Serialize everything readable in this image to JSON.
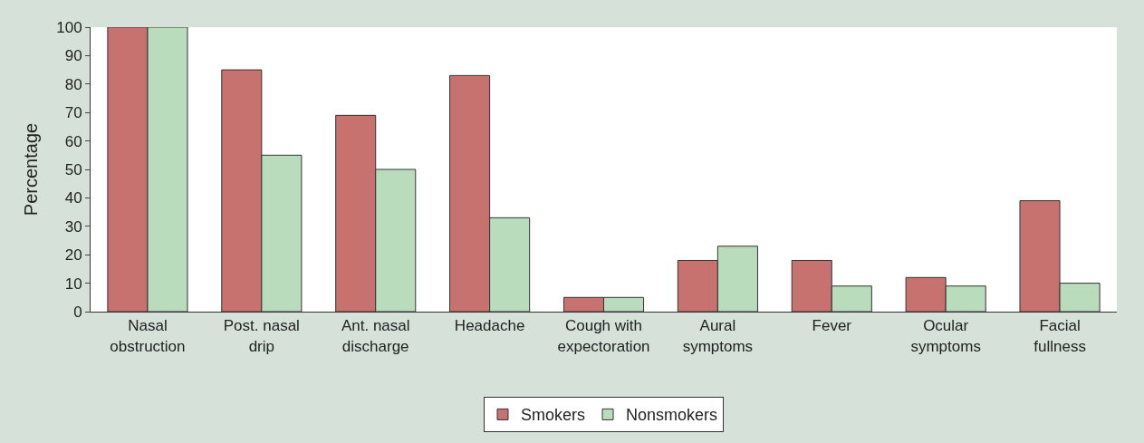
{
  "chart_data": {
    "type": "bar",
    "ylabel": "Percentage",
    "categories": [
      "Nasal\nobstruction",
      "Post. nasal\ndrip",
      "Ant. nasal\ndischarge",
      "Headache",
      "Cough with\nexpectoration",
      "Aural\nsymptoms",
      "Fever",
      "Ocular\nsymptoms",
      "Facial\nfullness"
    ],
    "series": [
      {
        "name": "Smokers",
        "color": "#c87270",
        "values": [
          100,
          85,
          69,
          83,
          5,
          18,
          18,
          12,
          39
        ]
      },
      {
        "name": "Nonsmokers",
        "color": "#b9dcbc",
        "values": [
          100,
          55,
          50,
          33,
          5,
          23,
          9,
          9,
          10
        ]
      }
    ],
    "ylim": [
      0,
      100
    ],
    "yticks": [
      0,
      10,
      20,
      30,
      40,
      50,
      60,
      70,
      80,
      90,
      100
    ],
    "grid": false,
    "legend": "bottom"
  }
}
